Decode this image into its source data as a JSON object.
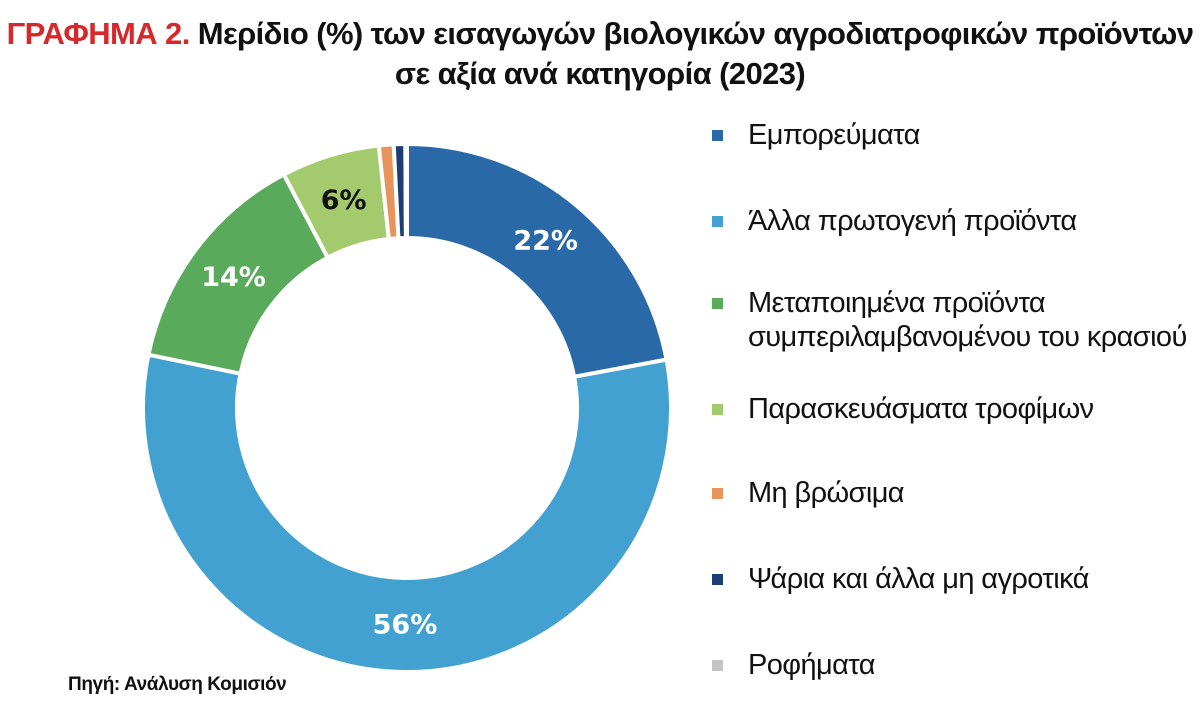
{
  "title": {
    "prefix": "ΓΡΑΦΗΜΑ 2.",
    "line1": "Μερίδιο (%) των εισαγωγών βιολογικών αγροδιατροφικών προϊόντων",
    "line2": "σε αξία ανά κατηγορία (2023)"
  },
  "source": "Πηγή: Ανάλυση Κομισιόν",
  "chart_data": {
    "type": "pie",
    "variant": "donut",
    "legend_position": "right",
    "slices": [
      {
        "label": "Εμπορεύματα",
        "value": 22,
        "display": "22%",
        "color": "#2a69a8",
        "label_color": "#ffffff"
      },
      {
        "label": "Άλλα πρωτογενή προϊόντα",
        "value": 56,
        "display": "56%",
        "color": "#42a1d0",
        "label_color": "#ffffff"
      },
      {
        "label": "Μεταποιημένα προϊόντα συμπεριλαμβανομένου του κρασιού",
        "label_lines": [
          "Μεταποιημένα προϊόντα",
          "συμπεριλαμβανομένου του κρασιού"
        ],
        "value": 14,
        "display": "14%",
        "color": "#5aaa5c",
        "label_color": "#ffffff"
      },
      {
        "label": "Παρασκευάσματα τροφίμων",
        "value": 6,
        "display": "6%",
        "color": "#a3ca6d",
        "label_color": "#111111"
      },
      {
        "label": "Μη βρώσιμα",
        "value": 0.9,
        "display": "",
        "color": "#e8935a",
        "label_color": "#111111"
      },
      {
        "label": "Ψάρια και άλλα μη αγροτικά",
        "value": 0.7,
        "display": "",
        "color": "#1c3e75",
        "label_color": "#111111"
      },
      {
        "label": "Ροφήματα",
        "value": 0.1,
        "display": "",
        "color": "#c4c4c4",
        "label_color": "#111111"
      }
    ]
  }
}
